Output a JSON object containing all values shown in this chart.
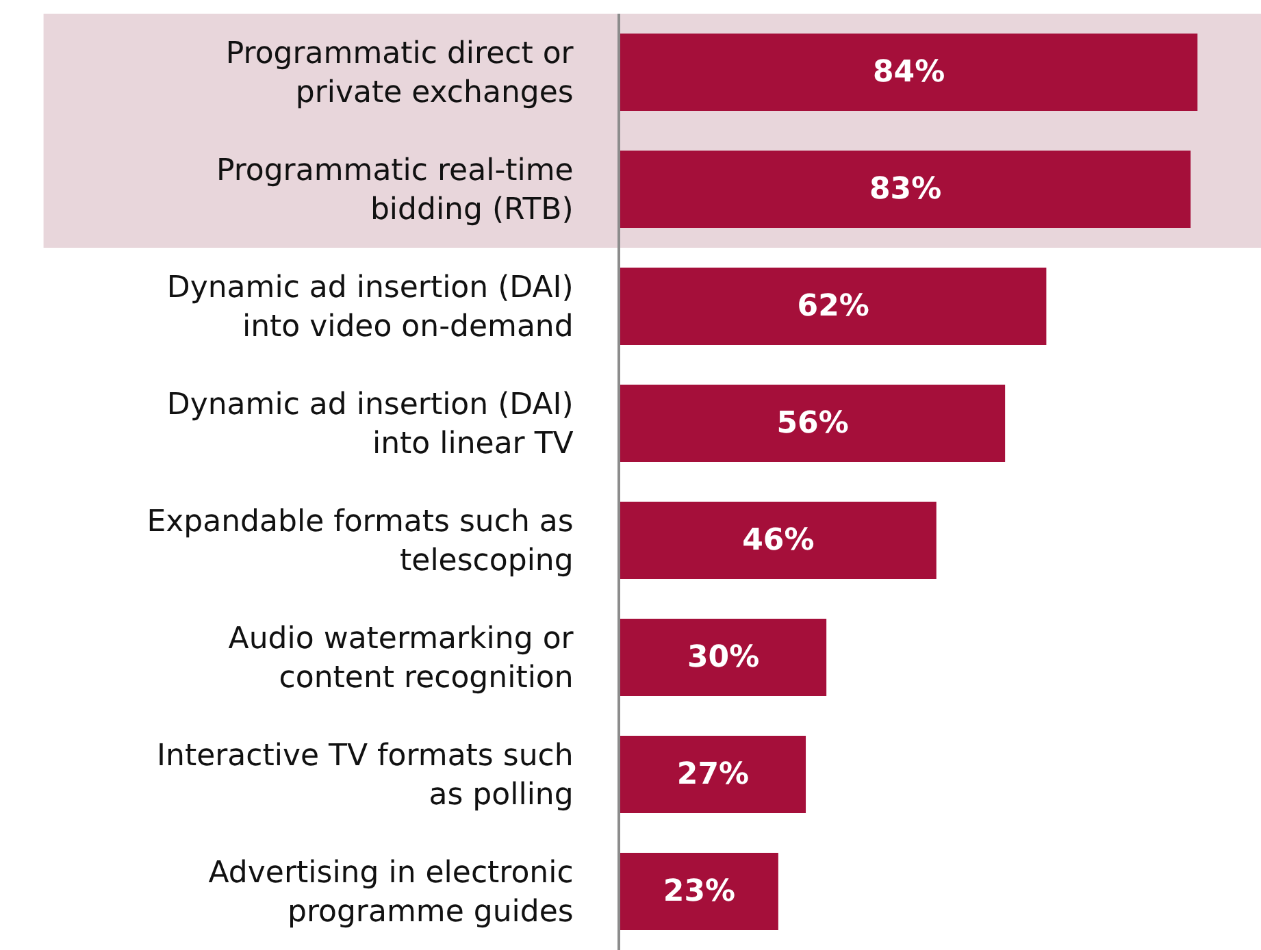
{
  "chart_data": {
    "type": "bar",
    "orientation": "horizontal",
    "categories": [
      "Programmatic direct or private exchanges",
      "Programmatic real-time bidding (RTB)",
      "Dynamic ad insertion (DAI) into video on-demand",
      "Dynamic ad insertion (DAI) into linear TV",
      "Expandable formats such as telescoping",
      "Audio watermarking or content recognition",
      "Interactive TV formats such as polling",
      "Advertising in electronic programme guides"
    ],
    "values": [
      84,
      83,
      62,
      56,
      46,
      30,
      27,
      23
    ],
    "value_labels": [
      "84%",
      "83%",
      "62%",
      "56%",
      "46%",
      "30%",
      "27%",
      "23%"
    ],
    "color": "#a50f3a",
    "bands": [
      {
        "axis": "y",
        "from": "Programmatic direct or private exchanges",
        "to": "Programmatic real-time bidding (RTB)",
        "color": "#e8d6db"
      }
    ],
    "grid": false,
    "legend": false
  }
}
